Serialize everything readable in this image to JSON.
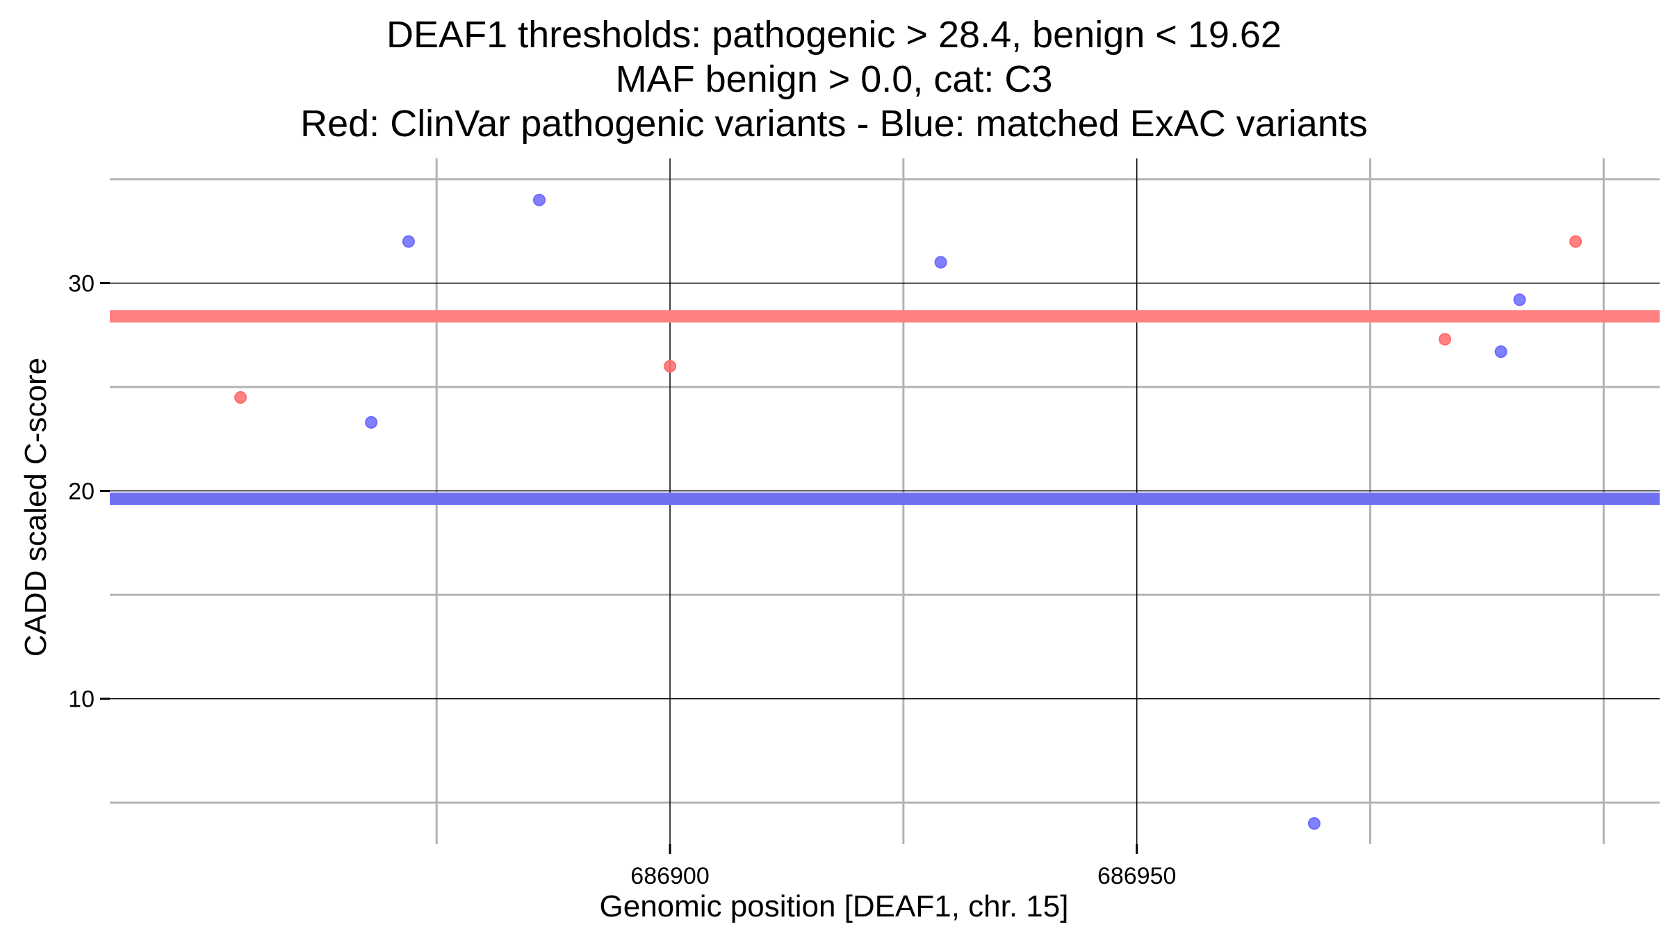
{
  "chart_data": {
    "type": "scatter",
    "title_lines": [
      "DEAF1 thresholds: pathogenic > 28.4, benign < 19.62",
      "MAF benign > 0.0, cat: C3",
      "Red: ClinVar pathogenic variants - Blue: matched ExAC variants"
    ],
    "xlabel": "Genomic position [DEAF1, chr. 15]",
    "ylabel": "CADD scaled C-score",
    "xlim": [
      686840,
      687006
    ],
    "ylim": [
      3,
      36
    ],
    "x_ticks": [
      686900,
      686950
    ],
    "x_minor_grid": [
      686875,
      686925,
      686975,
      687000
    ],
    "y_ticks": [
      10,
      20,
      30
    ],
    "y_minor_grid": [
      5,
      15,
      25,
      35
    ],
    "grid": true,
    "thresholds": [
      {
        "name": "pathogenic",
        "value": 28.4,
        "color": "#ff8080"
      },
      {
        "name": "benign",
        "value": 19.62,
        "color": "#7070f0"
      }
    ],
    "series": [
      {
        "color": "#ff6b6b",
        "points": [
          {
            "x": 686854,
            "y": 24.5
          },
          {
            "x": 686900,
            "y": 26.0
          },
          {
            "x": 686983,
            "y": 27.3
          },
          {
            "x": 686997,
            "y": 32.0
          }
        ]
      },
      {
        "color": "#6b6bff",
        "points": [
          {
            "x": 686868,
            "y": 23.3
          },
          {
            "x": 686872,
            "y": 32.0
          },
          {
            "x": 686886,
            "y": 34.0
          },
          {
            "x": 686929,
            "y": 31.0
          },
          {
            "x": 686969,
            "y": 4.0
          },
          {
            "x": 686989,
            "y": 26.7
          },
          {
            "x": 686991,
            "y": 29.2
          }
        ]
      }
    ]
  }
}
